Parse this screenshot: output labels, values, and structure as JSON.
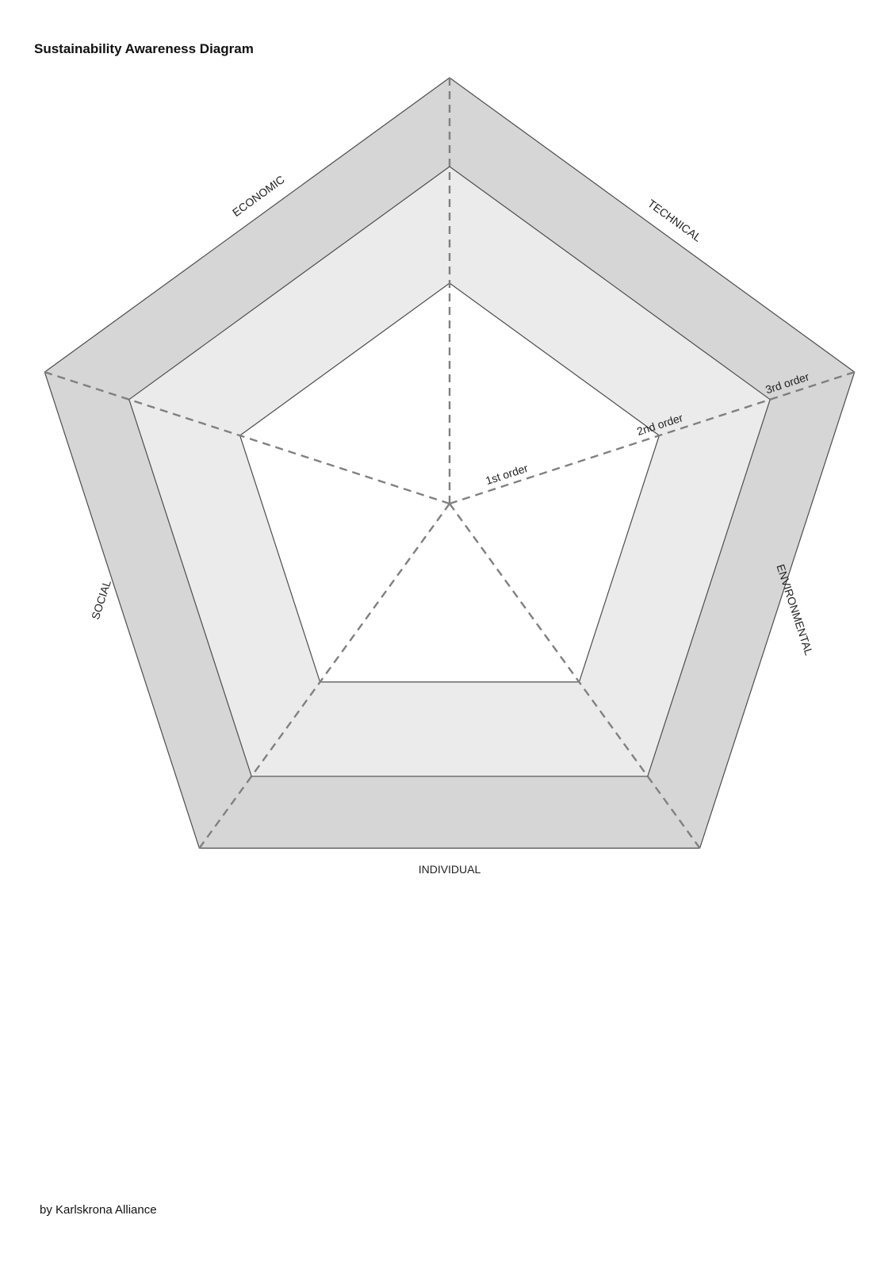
{
  "title": "Sustainability Awareness Diagram",
  "footer": "by Karlskrona Alliance",
  "dimensions": [
    "ECONOMIC",
    "TECHNICAL",
    "ENVIRONMENTAL",
    "INDIVIDUAL",
    "SOCIAL"
  ],
  "orders": [
    "1st order",
    "2nd order",
    "3rd order"
  ],
  "colors": {
    "outer_ring": "#d6d6d6",
    "middle_ring": "#ebebeb",
    "inner": "#ffffff",
    "outline": "#4d4d4d",
    "spoke": "#808080"
  }
}
